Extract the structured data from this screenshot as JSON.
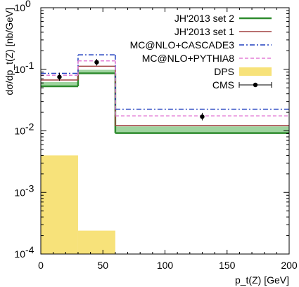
{
  "chart_data": {
    "type": "line",
    "xlabel": "p_t(Z) [GeV]",
    "ylabel": "dσ/dp_t(Z) [nb/GeV]",
    "xlim": [
      0,
      200
    ],
    "ylim": [
      0.0001,
      1
    ],
    "yscale": "log",
    "x_ticks": [
      0,
      50,
      100,
      150,
      200
    ],
    "y_ticks": [
      {
        "value": 0.0001,
        "base": "10",
        "exp": "-4"
      },
      {
        "value": 0.001,
        "base": "10",
        "exp": "-3"
      },
      {
        "value": 0.01,
        "base": "10",
        "exp": "-2"
      },
      {
        "value": 0.1,
        "base": "10",
        "exp": "-1"
      },
      {
        "value": 1,
        "base": "10",
        "exp": "0"
      }
    ],
    "bin_edges": [
      0,
      30,
      60,
      200
    ],
    "legend_position": "top-right",
    "series": [
      {
        "name": "JH'2013 set 2",
        "style": "band",
        "color": "#2e8b2e",
        "band_color": "#9fd49f",
        "central": [
          0.053,
          0.086,
          0.0092
        ],
        "band_low": [
          0.053,
          0.086,
          0.0092
        ],
        "band_high": [
          0.062,
          0.098,
          0.0118
        ]
      },
      {
        "name": "JH'2013 set 1",
        "style": "solid",
        "color": "#a14040",
        "values": [
          0.067,
          0.112,
          0.0122
        ]
      },
      {
        "name": "MC@NLO+CASCADE3",
        "style": "dashdot",
        "color": "#1f3fbf",
        "values": [
          0.086,
          0.172,
          0.0225
        ]
      },
      {
        "name": "MC@NLO+PYTHIA8",
        "style": "dashed",
        "color": "#e47fd6",
        "values": [
          0.08,
          0.137,
          0.0175
        ]
      },
      {
        "name": "DPS",
        "style": "fill",
        "color": "#f7e27a",
        "values": [
          0.004,
          0.00024,
          null
        ]
      },
      {
        "name": "CMS",
        "style": "points",
        "color": "#000000",
        "points": [
          {
            "x": 15,
            "y": 0.075,
            "err_low": 0.065,
            "err_high": 0.088
          },
          {
            "x": 45,
            "y": 0.13,
            "err_low": 0.115,
            "err_high": 0.147
          },
          {
            "x": 130,
            "y": 0.017,
            "err_low": 0.0148,
            "err_high": 0.0196
          }
        ]
      }
    ]
  }
}
